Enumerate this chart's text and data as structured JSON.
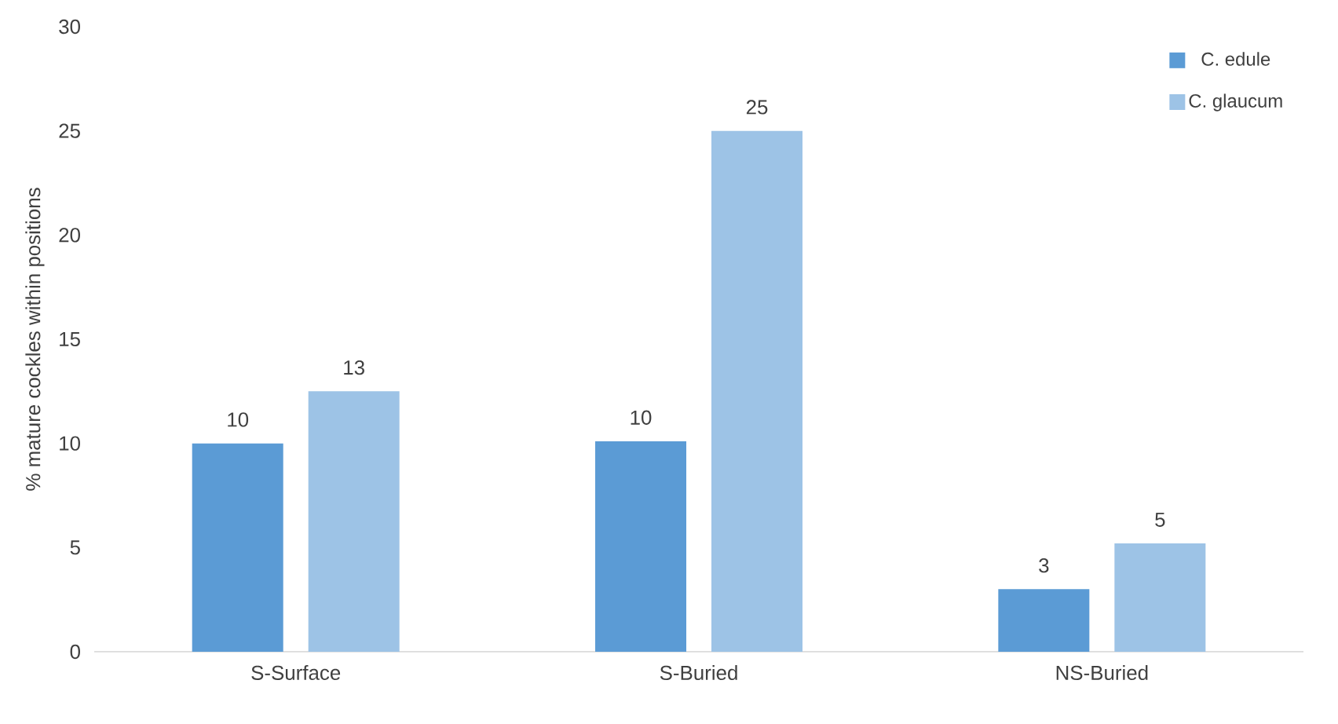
{
  "chart_data": {
    "type": "bar",
    "ylabel": "% mature cockles within positions",
    "categories": [
      "S-Surface",
      "S-Buried",
      "NS-Buried"
    ],
    "series": [
      {
        "name": "C. edule",
        "color": "#5b9bd5",
        "values": [
          10,
          10.1,
          3.0
        ],
        "value_labels": [
          "10",
          "10",
          "3"
        ]
      },
      {
        "name": "C. glaucum",
        "color": "#9dc3e6",
        "values": [
          12.5,
          25,
          5.2
        ],
        "value_labels": [
          "13",
          "25",
          "5"
        ]
      }
    ],
    "ylim": [
      0,
      30
    ],
    "yticks": [
      0,
      5,
      10,
      15,
      20,
      25,
      30
    ],
    "legend": "top right"
  }
}
